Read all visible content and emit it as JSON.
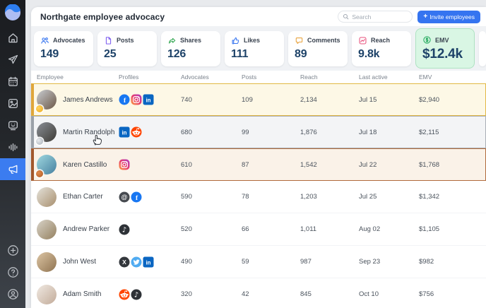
{
  "colors": {
    "accent_blue": "#3574f0",
    "sidebar_active": "#3b7cf0",
    "emv_card_bg": "#d9f6e4",
    "emv_green": "#22a95c",
    "value_navy": "#1d4268",
    "rank_gold": "#dfa63a",
    "rank_silver": "#9aa0a8",
    "rank_bronze": "#a2572c"
  },
  "sidebar": {
    "logo_icon": "wave-logo-icon",
    "items": [
      "home-icon",
      "paper-plane-icon",
      "calendar-icon",
      "image-icon",
      "chat-face-icon",
      "equalizer-icon",
      "megaphone-icon"
    ],
    "active_item": "megaphone-icon",
    "bottom_items": [
      "plus-circle-icon",
      "help-circle-icon",
      "user-circle-icon"
    ]
  },
  "header": {
    "title": "Northgate employee advocacy",
    "search_placeholder": "Search",
    "invite_label": "Invite employees"
  },
  "stats": [
    {
      "label": "Advocates",
      "value": "149",
      "icon": "advocates-icon",
      "color": "#3574f0"
    },
    {
      "label": "Posts",
      "value": "25",
      "icon": "posts-icon",
      "color": "#7c5cf0"
    },
    {
      "label": "Shares",
      "value": "126",
      "icon": "shares-icon",
      "color": "#35a854"
    },
    {
      "label": "Likes",
      "value": "111",
      "icon": "likes-icon",
      "color": "#3574f0"
    },
    {
      "label": "Comments",
      "value": "89",
      "icon": "comments-icon",
      "color": "#e8a23d"
    },
    {
      "label": "Reach",
      "value": "9.8k",
      "icon": "reach-icon",
      "color": "#e8517c"
    },
    {
      "label": "EMV",
      "value": "$12.4k",
      "icon": "emv-icon",
      "color": "#22a95c",
      "highlighted": true
    }
  ],
  "table": {
    "columns": [
      "Employee",
      "Profiles",
      "Advocates",
      "Posts",
      "Reach",
      "Last active",
      "EMV"
    ],
    "rows": [
      {
        "name": "James Andrews",
        "profiles": [
          "facebook",
          "instagram",
          "linkedin"
        ],
        "advocates": "740",
        "posts": "109",
        "reach": "2,134",
        "last_active": "Jul 15",
        "emv": "$2,940",
        "rank": "gold"
      },
      {
        "name": "Martin Randolph",
        "profiles": [
          "linkedin",
          "reddit"
        ],
        "advocates": "680",
        "posts": "99",
        "reach": "1,876",
        "last_active": "Jul 18",
        "emv": "$2,115",
        "rank": "silver"
      },
      {
        "name": "Karen Castillo",
        "profiles": [
          "instagram"
        ],
        "advocates": "610",
        "posts": "87",
        "reach": "1,542",
        "last_active": "Jul 22",
        "emv": "$1,768",
        "rank": "bronze"
      },
      {
        "name": "Ethan Carter",
        "profiles": [
          "threads",
          "facebook"
        ],
        "advocates": "590",
        "posts": "78",
        "reach": "1,203",
        "last_active": "Jul 25",
        "emv": "$1,342",
        "rank": null
      },
      {
        "name": "Andrew Parker",
        "profiles": [
          "tiktok"
        ],
        "advocates": "520",
        "posts": "66",
        "reach": "1,011",
        "last_active": "Aug 02",
        "emv": "$1,105",
        "rank": null
      },
      {
        "name": "John West",
        "profiles": [
          "x",
          "twitter",
          "linkedin"
        ],
        "advocates": "490",
        "posts": "59",
        "reach": "987",
        "last_active": "Sep 23",
        "emv": "$982",
        "rank": null
      },
      {
        "name": "Adam Smith",
        "profiles": [
          "reddit",
          "tiktok"
        ],
        "advocates": "320",
        "posts": "42",
        "reach": "845",
        "last_active": "Oct 10",
        "emv": "$756",
        "rank": null
      }
    ]
  }
}
